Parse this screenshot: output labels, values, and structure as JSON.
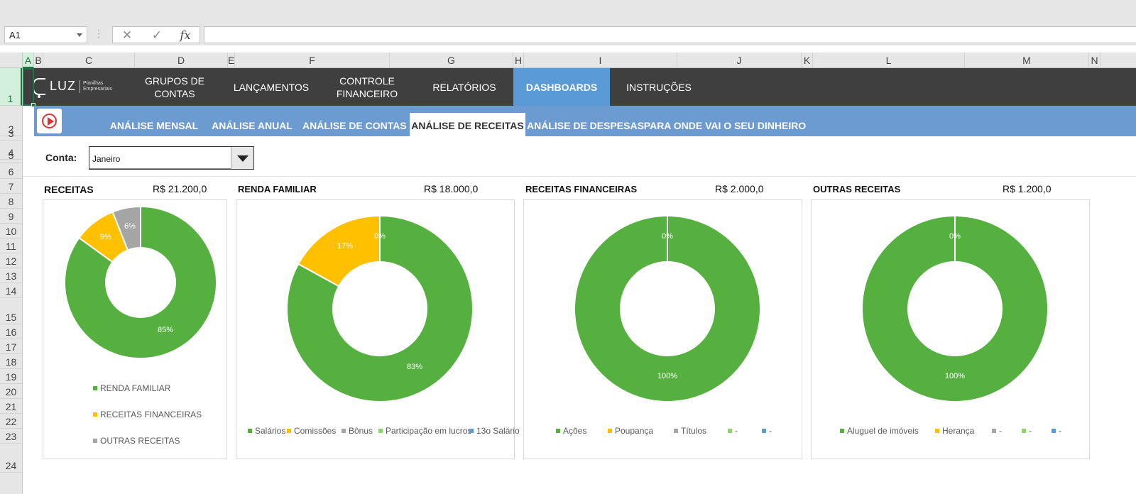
{
  "formula_bar": {
    "name_box": "A1",
    "cancel_icon": "✕",
    "enter_icon": "✓",
    "fx_label": "fx",
    "formula": ""
  },
  "columns": [
    "A",
    "B",
    "C",
    "D",
    "E",
    "F",
    "G",
    "H",
    "I",
    "J",
    "K",
    "L",
    "M",
    "N"
  ],
  "rows": [
    "1",
    "2",
    "3",
    "4",
    "5",
    "6",
    "7",
    "8",
    "9",
    "10",
    "11",
    "12",
    "13",
    "14",
    "15",
    "16",
    "17",
    "18",
    "19",
    "20",
    "21",
    "22",
    "23",
    "24"
  ],
  "logo": {
    "brand": "LUZ",
    "tagline": "Planilhas Empresariais"
  },
  "nav": [
    {
      "label": "GRUPOS DE\nCONTAS"
    },
    {
      "label": "LANÇAMENTOS"
    },
    {
      "label": "CONTROLE\nFINANCEIRO"
    },
    {
      "label": "RELATÓRIOS"
    },
    {
      "label": "DASHBOARDS",
      "active": true
    },
    {
      "label": "INSTRUÇÕES"
    }
  ],
  "subtabs": [
    {
      "label": "ANÁLISE MENSAL"
    },
    {
      "label": "ANÁLISE ANUAL"
    },
    {
      "label": "ANÁLISE DE CONTAS"
    },
    {
      "label": "ANÁLISE DE RECEITAS",
      "active": true
    },
    {
      "label": "ANÁLISE DE DESPESAS"
    },
    {
      "label": "PARA ONDE VAI O SEU DINHEIRO"
    }
  ],
  "filter": {
    "label": "Conta:",
    "value": "Janeiro"
  },
  "colors": {
    "green": "#56b040",
    "yellow": "#ffc000",
    "gray": "#a5a5a5",
    "lightgreen": "#8fd16a",
    "blue": "#5b9bd5",
    "nav_bg": "#3f3f3f",
    "accent": "#5b9bd5"
  },
  "chart_data": [
    {
      "type": "pie",
      "title": "RECEITAS",
      "total": "R$ 21.200,0",
      "slices": [
        {
          "name": "RENDA FAMILIAR",
          "value": 85,
          "label": "85%",
          "color": "#56b040"
        },
        {
          "name": "RECEITAS FINANCEIRAS",
          "value": 9,
          "label": "9%",
          "color": "#ffc000"
        },
        {
          "name": "OUTRAS RECEITAS",
          "value": 6,
          "label": "6%",
          "color": "#a5a5a5"
        }
      ],
      "legend": "bottom"
    },
    {
      "type": "pie",
      "title": "RENDA FAMILIAR",
      "total": "R$ 18.000,0",
      "slices": [
        {
          "name": "Salários",
          "value": 83,
          "label": "83%",
          "color": "#56b040"
        },
        {
          "name": "Comissões",
          "value": 17,
          "label": "17%",
          "color": "#ffc000"
        },
        {
          "name": "Bônus",
          "value": 0,
          "label": "0%",
          "color": "#a5a5a5"
        },
        {
          "name": "Participação em lucros",
          "value": 0,
          "label": "",
          "color": "#8fd16a"
        },
        {
          "name": "13o Salário",
          "value": 0,
          "label": "",
          "color": "#5b9bd5"
        }
      ],
      "legend": "bottom"
    },
    {
      "type": "pie",
      "title": "RECEITAS FINANCEIRAS",
      "total": "R$ 2.000,0",
      "slices": [
        {
          "name": "Ações",
          "value": 100,
          "label": "100%",
          "color": "#56b040"
        },
        {
          "name": "Poupança",
          "value": 0,
          "label": "0%",
          "color": "#ffc000"
        },
        {
          "name": "Títulos",
          "value": 0,
          "label": "",
          "color": "#a5a5a5"
        },
        {
          "name": "-",
          "value": 0,
          "label": "",
          "color": "#8fd16a"
        },
        {
          "name": "-",
          "value": 0,
          "label": "",
          "color": "#5b9bd5"
        }
      ],
      "legend": "bottom"
    },
    {
      "type": "pie",
      "title": "OUTRAS RECEITAS",
      "total": "R$ 1.200,0",
      "slices": [
        {
          "name": "Aluguel de imóveis",
          "value": 100,
          "label": "100%",
          "color": "#56b040"
        },
        {
          "name": "Herança",
          "value": 0,
          "label": "0%",
          "color": "#ffc000"
        },
        {
          "name": "-",
          "value": 0,
          "label": "",
          "color": "#a5a5a5"
        },
        {
          "name": "-",
          "value": 0,
          "label": "",
          "color": "#8fd16a"
        },
        {
          "name": "-",
          "value": 0,
          "label": "",
          "color": "#5b9bd5"
        }
      ],
      "legend": "bottom"
    }
  ]
}
